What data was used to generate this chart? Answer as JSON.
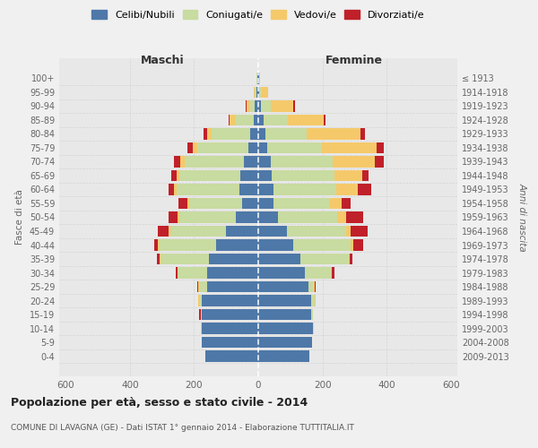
{
  "age_groups": [
    "100+",
    "95-99",
    "90-94",
    "85-89",
    "80-84",
    "75-79",
    "70-74",
    "65-69",
    "60-64",
    "55-59",
    "50-54",
    "45-49",
    "40-44",
    "35-39",
    "30-34",
    "25-29",
    "20-24",
    "15-19",
    "10-14",
    "5-9",
    "0-4"
  ],
  "birth_years": [
    "≤ 1913",
    "1914-1918",
    "1919-1923",
    "1924-1928",
    "1929-1933",
    "1934-1938",
    "1939-1943",
    "1944-1948",
    "1949-1953",
    "1954-1958",
    "1959-1963",
    "1964-1968",
    "1969-1973",
    "1974-1978",
    "1979-1983",
    "1984-1988",
    "1989-1993",
    "1994-1998",
    "1999-2003",
    "2004-2008",
    "2009-2013"
  ],
  "colors": {
    "celibi": "#4e78a8",
    "coniugati": "#c8dba0",
    "vedovi": "#f5c96a",
    "divorziati": "#c0202a"
  },
  "maschi": {
    "celibi": [
      3,
      5,
      10,
      15,
      25,
      30,
      45,
      55,
      60,
      50,
      70,
      100,
      130,
      155,
      160,
      160,
      175,
      175,
      175,
      175,
      165
    ],
    "coniugati": [
      2,
      6,
      15,
      55,
      120,
      160,
      185,
      190,
      195,
      165,
      175,
      175,
      180,
      150,
      90,
      25,
      10,
      5,
      5,
      0,
      0
    ],
    "vedovi": [
      1,
      4,
      12,
      18,
      15,
      15,
      12,
      10,
      8,
      5,
      5,
      3,
      3,
      2,
      2,
      2,
      2,
      0,
      0,
      0,
      0
    ],
    "divorziati": [
      0,
      0,
      3,
      5,
      10,
      15,
      20,
      15,
      15,
      28,
      28,
      35,
      10,
      8,
      5,
      3,
      0,
      4,
      0,
      0,
      0
    ]
  },
  "femmine": {
    "celibi": [
      2,
      4,
      8,
      18,
      22,
      28,
      38,
      42,
      48,
      48,
      62,
      90,
      110,
      130,
      145,
      155,
      165,
      165,
      170,
      168,
      158
    ],
    "coniugati": [
      1,
      6,
      30,
      75,
      130,
      170,
      195,
      195,
      195,
      175,
      185,
      185,
      178,
      152,
      82,
      18,
      12,
      4,
      4,
      0,
      0
    ],
    "vedovi": [
      2,
      22,
      72,
      110,
      165,
      170,
      130,
      88,
      68,
      38,
      28,
      14,
      7,
      4,
      2,
      2,
      2,
      0,
      0,
      0,
      0
    ],
    "divorziati": [
      0,
      0,
      4,
      6,
      14,
      22,
      28,
      18,
      42,
      28,
      52,
      52,
      32,
      7,
      8,
      4,
      0,
      0,
      0,
      0,
      0
    ]
  },
  "title": "Popolazione per età, sesso e stato civile - 2014",
  "subtitle": "COMUNE DI LAVAGNA (GE) - Dati ISTAT 1° gennaio 2014 - Elaborazione TUTTITALIA.IT",
  "xlabel_left": "Maschi",
  "xlabel_right": "Femmine",
  "ylabel": "Fasce di età",
  "ylabel_right": "Anni di nascita",
  "xlim": 620,
  "legend_labels": [
    "Celibi/Nubili",
    "Coniugati/e",
    "Vedovi/e",
    "Divorziati/e"
  ],
  "bg_color": "#f0f0f0",
  "plot_bg": "#e8e8e8"
}
